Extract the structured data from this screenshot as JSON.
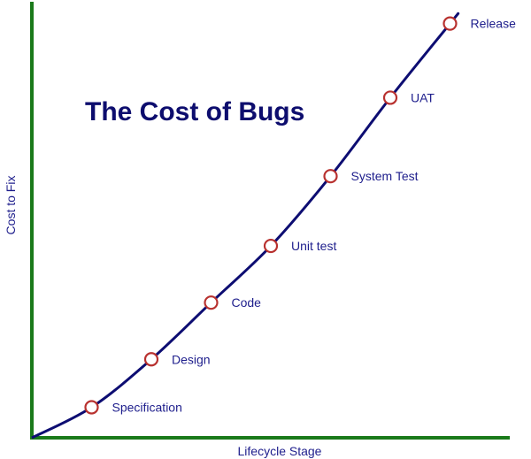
{
  "chart_data": {
    "type": "line",
    "title": "The Cost of Bugs",
    "xlabel": "Lifecycle Stage",
    "ylabel": "Cost to Fix",
    "categories": [
      "Specification",
      "Design",
      "Code",
      "Unit test",
      "System Test",
      "UAT",
      "Release"
    ],
    "values": [
      7,
      18,
      31,
      44,
      60,
      78,
      95
    ],
    "xlim": [
      0,
      8
    ],
    "ylim": [
      0,
      100
    ],
    "grid": false,
    "legend": "none"
  },
  "colors": {
    "axis": "#1a7a1a",
    "curve": "#0d0d72",
    "marker_stroke": "#b8312f",
    "marker_fill": "#ffffff",
    "text": "#1e1e8c",
    "title": "#0d0d6e"
  }
}
